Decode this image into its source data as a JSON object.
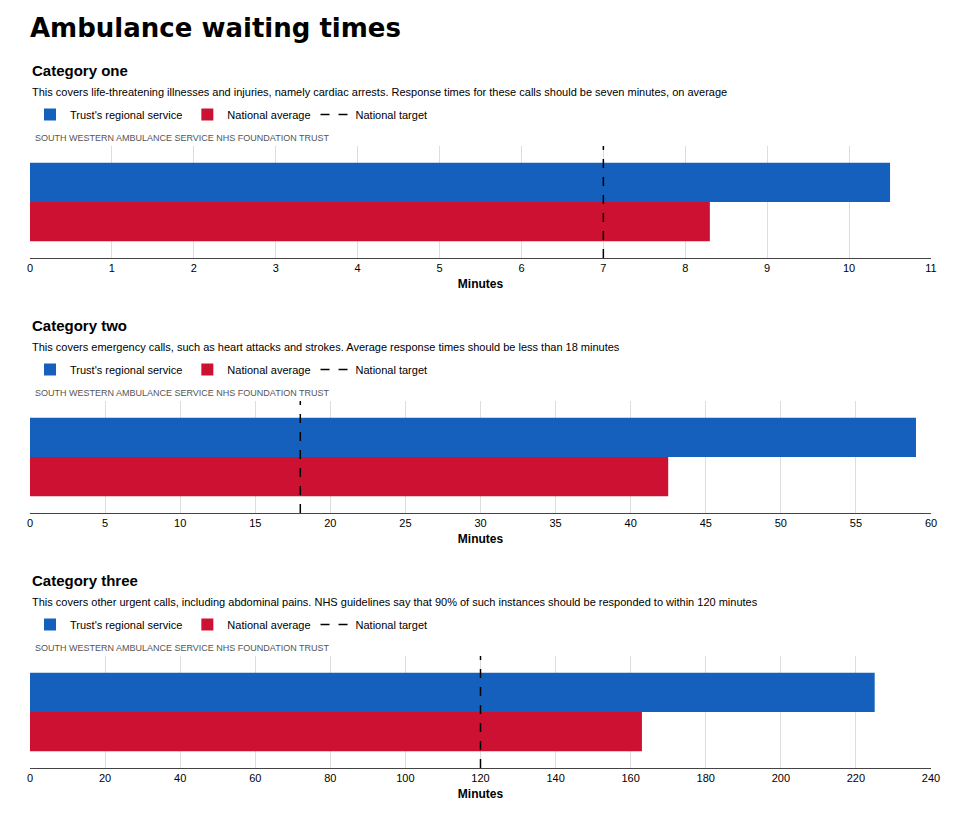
{
  "title": "Ambulance waiting times",
  "chart_data": [
    {
      "type": "bar",
      "orientation": "horizontal",
      "title": "Category one",
      "subtitle": "This covers life-threatening illnesses and injuries, namely cardiac arrests. Response times for these calls should be seven minutes, on average",
      "annotations": [
        "SOUTH WESTERN AMBULANCE SERVICE NHS FOUNDATION TRUST"
      ],
      "xlabel": "Minutes",
      "categories": [
        null
      ],
      "series": [
        {
          "name": "Trust's regional service",
          "color": "#1560bd",
          "values": [
            10.5
          ]
        },
        {
          "name": "National average",
          "color": "#cc1133",
          "values": [
            8.3
          ]
        },
        {
          "name": "National target",
          "type": "vline",
          "line_style": "dashed",
          "color": "#000000",
          "values": [
            7.0
          ]
        }
      ],
      "xlim": [
        0,
        11
      ],
      "xticks": [
        0,
        1,
        2,
        3,
        4,
        5,
        6,
        7,
        8,
        9,
        10,
        11
      ],
      "grid": true,
      "tick_labels": "x",
      "legend": "top left"
    },
    {
      "type": "bar",
      "orientation": "horizontal",
      "title": "Category two",
      "subtitle": "This covers emergency calls, such as heart attacks and strokes. Average response times should be less than 18 minutes",
      "annotations": [
        "SOUTH WESTERN AMBULANCE SERVICE NHS FOUNDATION TRUST"
      ],
      "xlabel": "Minutes",
      "categories": [
        null
      ],
      "series": [
        {
          "name": "Trust's regional service",
          "color": "#1560bd",
          "values": [
            59.0
          ]
        },
        {
          "name": "National average",
          "color": "#cc1133",
          "values": [
            42.5
          ]
        },
        {
          "name": "National target",
          "type": "vline",
          "line_style": "dashed",
          "color": "#000000",
          "values": [
            18.0
          ]
        }
      ],
      "xlim": [
        0,
        60
      ],
      "xticks": [
        0,
        5,
        10,
        15,
        20,
        25,
        30,
        35,
        40,
        45,
        50,
        55,
        60
      ],
      "grid": true,
      "tick_labels": "x",
      "legend": "top left"
    },
    {
      "type": "bar",
      "orientation": "horizontal",
      "title": "Category three",
      "subtitle": "This covers other urgent calls, including abdominal pains. NHS guidelines say that 90% of such instances should be responded to within 120 minutes",
      "annotations": [
        "SOUTH WESTERN AMBULANCE SERVICE NHS FOUNDATION TRUST"
      ],
      "xlabel": "Minutes",
      "categories": [
        null
      ],
      "series": [
        {
          "name": "Trust's regional service",
          "color": "#1560bd",
          "values": [
            225.0
          ]
        },
        {
          "name": "National average",
          "color": "#cc1133",
          "values": [
            163.0
          ]
        },
        {
          "name": "National target",
          "type": "vline",
          "line_style": "dashed",
          "color": "#000000",
          "values": [
            120.0
          ]
        }
      ],
      "xlim": [
        0,
        240
      ],
      "xticks": [
        0,
        20,
        40,
        60,
        80,
        100,
        120,
        140,
        160,
        180,
        200,
        220,
        240
      ],
      "grid": true,
      "tick_labels": "x",
      "legend": "top left"
    }
  ]
}
